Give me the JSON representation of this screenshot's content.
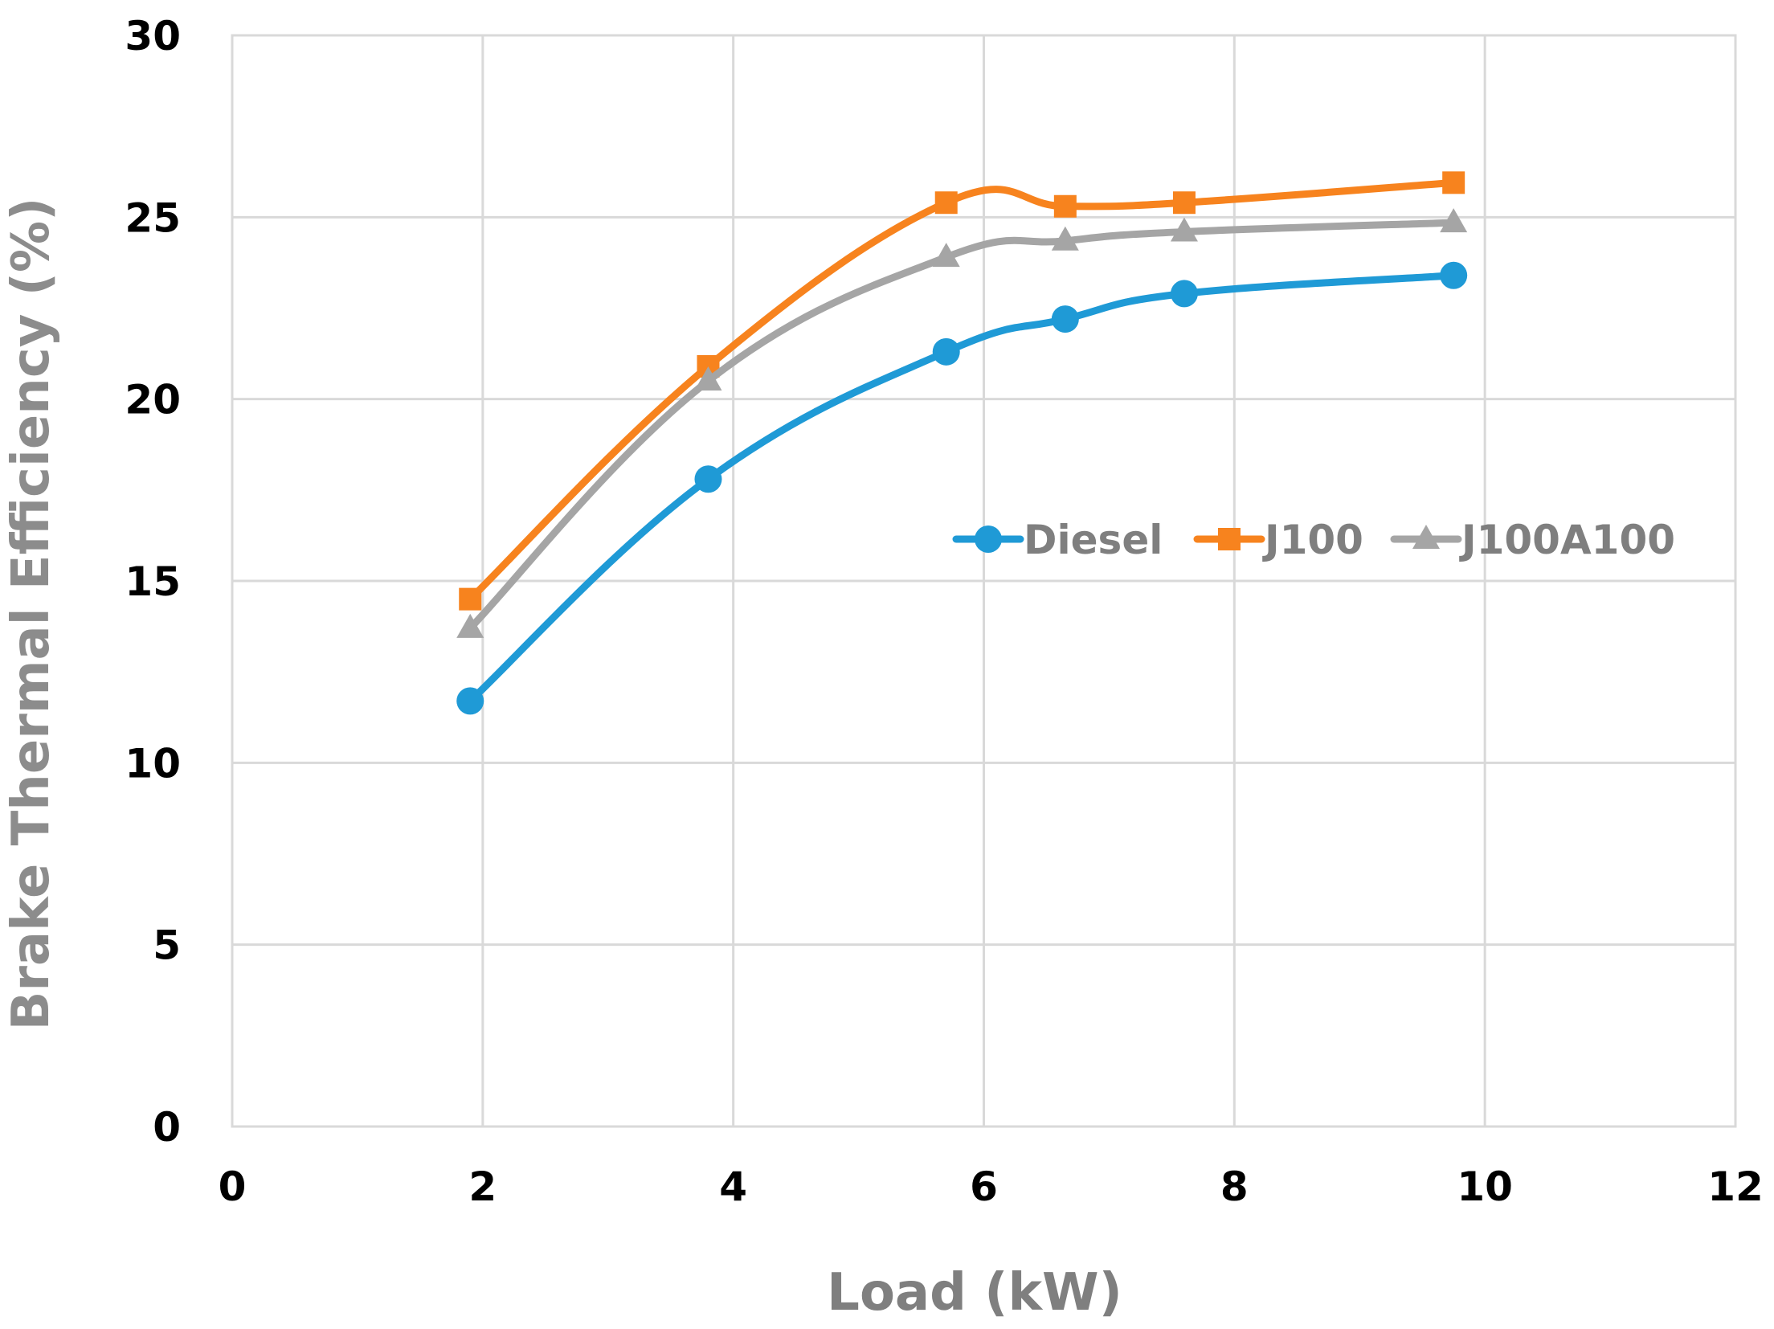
{
  "chart_data": {
    "type": "line",
    "xlabel": "Load (kW)",
    "ylabel": "Brake Thermal Efficiency (%)",
    "xlim": [
      0,
      12
    ],
    "ylim": [
      0,
      30
    ],
    "x_ticks": [
      0,
      2,
      4,
      6,
      8,
      10,
      12
    ],
    "y_ticks": [
      0,
      5,
      10,
      15,
      20,
      25,
      30
    ],
    "grid": true,
    "legend_position": "center-right",
    "x": [
      1.9,
      3.8,
      5.7,
      6.65,
      7.6,
      9.75
    ],
    "series": [
      {
        "name": "Diesel",
        "values": [
          11.7,
          17.8,
          21.3,
          22.2,
          22.9,
          23.4
        ],
        "color": "#1f9ad6",
        "marker": "circle"
      },
      {
        "name": "J100",
        "values": [
          14.5,
          20.9,
          25.4,
          25.3,
          25.4,
          25.95
        ],
        "color": "#f7831e",
        "marker": "square"
      },
      {
        "name": "J100A100",
        "values": [
          13.7,
          20.5,
          23.9,
          24.35,
          24.6,
          24.85
        ],
        "color": "#a5a5a5",
        "marker": "triangle"
      }
    ],
    "colors": {
      "axis_title": "#7f7f7f",
      "ylabel": "#8c8c8c",
      "grid": "#d9d9d9",
      "tick_label": "#000000"
    }
  }
}
